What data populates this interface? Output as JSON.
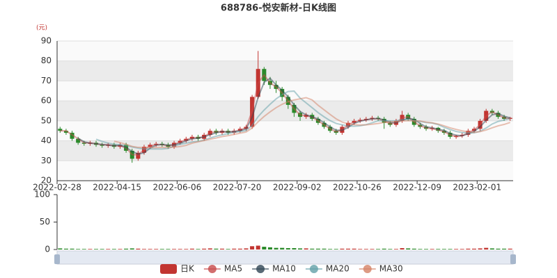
{
  "chart_data": {
    "type": "candlestick",
    "title": "688786-悦安新材-日K线图",
    "y_unit": "(元)",
    "categories": [
      "2022-02-28",
      null,
      null,
      null,
      null,
      null,
      null,
      null,
      null,
      null,
      "2022-04-15",
      null,
      null,
      null,
      null,
      null,
      null,
      null,
      null,
      null,
      "2022-06-06",
      null,
      null,
      null,
      null,
      null,
      null,
      null,
      null,
      null,
      "2022-07-20",
      null,
      null,
      null,
      null,
      null,
      null,
      null,
      null,
      null,
      "2022-09-02",
      null,
      null,
      null,
      null,
      null,
      null,
      null,
      null,
      null,
      "2022-10-26",
      null,
      null,
      null,
      null,
      null,
      null,
      null,
      null,
      null,
      "2022-12-09",
      null,
      null,
      null,
      null,
      null,
      null,
      null,
      null,
      null,
      "2023-02-01",
      null,
      null,
      null,
      null,
      null
    ],
    "ylim": [
      20,
      90
    ],
    "yticks": [
      20,
      30,
      40,
      50,
      60,
      70,
      80,
      90
    ],
    "grid": true,
    "series": [
      {
        "name": "日K",
        "type": "candlestick",
        "color": "#c23531",
        "color_down": "#2a8a2a",
        "values": [
          [
            46,
            45,
            44,
            47
          ],
          [
            45,
            44,
            43,
            46
          ],
          [
            44,
            41,
            40,
            45
          ],
          [
            41,
            39,
            38,
            42
          ],
          [
            39,
            38.5,
            37.5,
            40
          ],
          [
            38.5,
            39,
            37.5,
            40
          ],
          [
            39,
            38,
            37,
            40
          ],
          [
            38,
            37.5,
            36.5,
            39
          ],
          [
            37.5,
            38,
            36.5,
            39
          ],
          [
            38,
            37,
            36,
            39
          ],
          [
            37,
            38,
            36,
            39
          ],
          [
            38,
            35,
            34,
            39
          ],
          [
            35,
            31,
            29,
            36
          ],
          [
            31,
            34,
            30,
            35
          ],
          [
            34,
            37,
            33,
            38
          ],
          [
            37,
            38,
            36,
            39
          ],
          [
            38,
            38.5,
            37,
            39.5
          ],
          [
            38.5,
            38,
            37,
            39.5
          ],
          [
            38,
            37,
            36,
            39
          ],
          [
            37,
            39,
            36,
            40
          ],
          [
            39,
            40,
            38,
            41
          ],
          [
            40,
            41,
            39,
            42
          ],
          [
            41,
            42,
            40,
            43
          ],
          [
            42,
            41,
            40,
            43
          ],
          [
            41,
            43,
            40,
            44
          ],
          [
            43,
            45,
            42,
            46
          ],
          [
            45,
            44,
            43,
            46
          ],
          [
            44,
            45,
            43,
            46
          ],
          [
            45,
            44,
            43,
            46
          ],
          [
            44,
            45,
            43,
            46
          ],
          [
            45,
            46,
            44,
            47
          ],
          [
            46,
            47,
            45,
            48
          ],
          [
            47,
            62,
            46,
            63
          ],
          [
            62,
            76,
            61,
            85
          ],
          [
            76,
            70,
            68,
            77
          ],
          [
            70,
            68,
            66,
            72
          ],
          [
            68,
            66,
            64,
            70
          ],
          [
            66,
            62,
            60,
            67
          ],
          [
            62,
            58,
            56,
            63
          ],
          [
            58,
            54,
            52,
            59
          ],
          [
            54,
            52,
            50,
            55
          ],
          [
            52,
            53,
            51,
            54
          ],
          [
            53,
            51,
            50,
            54
          ],
          [
            51,
            49,
            48,
            52
          ],
          [
            49,
            47,
            46,
            50
          ],
          [
            47,
            45,
            44,
            48
          ],
          [
            45,
            44,
            43,
            46
          ],
          [
            44,
            47,
            43,
            48
          ],
          [
            47,
            49,
            46,
            50
          ],
          [
            49,
            50,
            48,
            51
          ],
          [
            50,
            50.5,
            49,
            51.5
          ],
          [
            50.5,
            51,
            49.5,
            52
          ],
          [
            51,
            51.5,
            50,
            52.5
          ],
          [
            51.5,
            51,
            50,
            52.5
          ],
          [
            51,
            49,
            46,
            52
          ],
          [
            49,
            48,
            47,
            50
          ],
          [
            48,
            50,
            47,
            51
          ],
          [
            50,
            53,
            49,
            55
          ],
          [
            53,
            51,
            50,
            54
          ],
          [
            51,
            48,
            47,
            52
          ],
          [
            48,
            47,
            46,
            49
          ],
          [
            47,
            46,
            45,
            48
          ],
          [
            46,
            46.5,
            45,
            47.5
          ],
          [
            46.5,
            45,
            44,
            47
          ],
          [
            45,
            44,
            43,
            46
          ],
          [
            44,
            42,
            41,
            45
          ],
          [
            42,
            42.5,
            41,
            43
          ],
          [
            42.5,
            43,
            41.5,
            44
          ],
          [
            43,
            45,
            42,
            46
          ],
          [
            45,
            46,
            44,
            47
          ],
          [
            46,
            50,
            45,
            51
          ],
          [
            50,
            55,
            49,
            56
          ],
          [
            55,
            54,
            53,
            56
          ],
          [
            54,
            52,
            51,
            55
          ],
          [
            52,
            51,
            50,
            53
          ],
          [
            51,
            51.5,
            50,
            52
          ]
        ]
      },
      {
        "name": "MA5",
        "type": "line",
        "color": "#c74a4a",
        "values": [
          45,
          45,
          43,
          41,
          39,
          39,
          38.5,
          38,
          38,
          37.5,
          37.5,
          36.5,
          33,
          33,
          35.5,
          37.5,
          38,
          38,
          37.5,
          38,
          39.5,
          40.5,
          41.5,
          41.5,
          42,
          44,
          44.5,
          44.5,
          44.5,
          44.5,
          45.5,
          46.5,
          55,
          69,
          73,
          69,
          67,
          64,
          60,
          56,
          53,
          52.5,
          52,
          50,
          48,
          46,
          44.5,
          45.5,
          48,
          49.5,
          50,
          50.5,
          51,
          51,
          50,
          48.5,
          49,
          51.5,
          52,
          49.5,
          47.5,
          46.5,
          46,
          45.5,
          44.5,
          43,
          42,
          42.5,
          44,
          45.5,
          48,
          52.5,
          54.5,
          53,
          51.5,
          51
        ]
      },
      {
        "name": "MA10",
        "type": "line",
        "color": "#2f4554",
        "values": [
          null,
          null,
          null,
          41.3,
          39.5,
          38.8,
          38.5,
          38.2,
          37.8,
          37.5,
          37.7,
          36.7,
          34.7,
          33.3,
          34,
          36.3,
          37.8,
          38.2,
          37.8,
          38,
          38.7,
          40,
          41,
          41.3,
          42,
          43,
          44,
          44.7,
          44.3,
          44.7,
          45,
          46,
          51.7,
          61.7,
          69.3,
          71.3,
          68,
          65.3,
          62,
          58,
          54.7,
          53,
          52,
          51,
          49,
          47,
          45.3,
          45.3,
          46.7,
          48.7,
          49.8,
          50.5,
          51,
          51.2,
          50.5,
          49.3,
          49,
          50.3,
          51.3,
          50.7,
          48.7,
          47,
          46.5,
          45.8,
          45.2,
          43.7,
          42.8,
          42.5,
          43.5,
          44.7,
          47,
          50.3,
          53,
          53.7,
          52.3,
          51.5
        ]
      },
      {
        "name": "MA20",
        "type": "line",
        "color": "#61a0a8",
        "values": [
          null,
          null,
          null,
          null,
          null,
          null,
          40.8,
          39.7,
          38.8,
          38.3,
          38,
          37.6,
          36.9,
          36.3,
          35.9,
          35.9,
          35.9,
          35.9,
          36.2,
          37.4,
          38.2,
          38.8,
          39.4,
          39.7,
          40.4,
          41.4,
          42.3,
          43,
          43.6,
          44.3,
          44.6,
          45.1,
          47.7,
          52.1,
          55.4,
          58.3,
          61,
          63.1,
          64.7,
          64.9,
          61.4,
          59,
          56.6,
          54.1,
          52,
          50.1,
          48.7,
          48,
          47.4,
          47.3,
          47.5,
          48.1,
          49,
          50,
          50.1,
          50,
          50,
          50.6,
          50.6,
          50.1,
          49.7,
          49.1,
          48.9,
          48.1,
          46.8,
          45.6,
          44.7,
          44.1,
          43.9,
          44,
          44.8,
          46.4,
          48.4,
          49.7,
          50.4,
          51.3
        ]
      },
      {
        "name": "MA30",
        "type": "line",
        "color": "#d48265",
        "values": [
          null,
          null,
          null,
          null,
          null,
          null,
          null,
          null,
          null,
          39.8,
          39.1,
          38.2,
          37.2,
          36.7,
          36.6,
          36.6,
          36.6,
          36.7,
          36.6,
          36.8,
          37.1,
          37.7,
          38.8,
          39.5,
          40.1,
          40.8,
          41.4,
          42.1,
          42.6,
          43.2,
          43.8,
          44.4,
          46.4,
          49.5,
          52.2,
          54.5,
          56.6,
          58.3,
          59.6,
          60.5,
          61,
          61.6,
          60.5,
          57.8,
          55.5,
          53.2,
          51,
          49.4,
          48.5,
          48.1,
          47.9,
          48,
          48.3,
          48.7,
          49.2,
          49.5,
          49.6,
          49.9,
          50.1,
          50,
          49.9,
          49.4,
          49,
          48.4,
          47.5,
          46.5,
          45.7,
          45,
          44.5,
          44.2,
          44.6,
          45.4,
          46.5,
          47.5,
          48.2,
          49.2
        ]
      }
    ],
    "volume": {
      "ylim": [
        0,
        100
      ],
      "yticks": [
        0,
        50,
        100
      ],
      "values": [
        2,
        1.5,
        1.5,
        1,
        1,
        1,
        1,
        1,
        1,
        1,
        1,
        1.5,
        2,
        1.5,
        1,
        1,
        1,
        1,
        1,
        1,
        1,
        1,
        1.5,
        1,
        1.5,
        2,
        1.5,
        1.5,
        1,
        1.5,
        1.5,
        2,
        6,
        7,
        5,
        4,
        3,
        3,
        2.5,
        2.5,
        2,
        2,
        1.5,
        1.5,
        1.5,
        1,
        1,
        1.5,
        1.5,
        1.5,
        1,
        1,
        1,
        1,
        1.5,
        1,
        1,
        2.5,
        2,
        1.5,
        1,
        1,
        1,
        1,
        1,
        1,
        1,
        1,
        1.5,
        1.5,
        2,
        3,
        2,
        1.5,
        1.5,
        1.5
      ]
    }
  }
}
